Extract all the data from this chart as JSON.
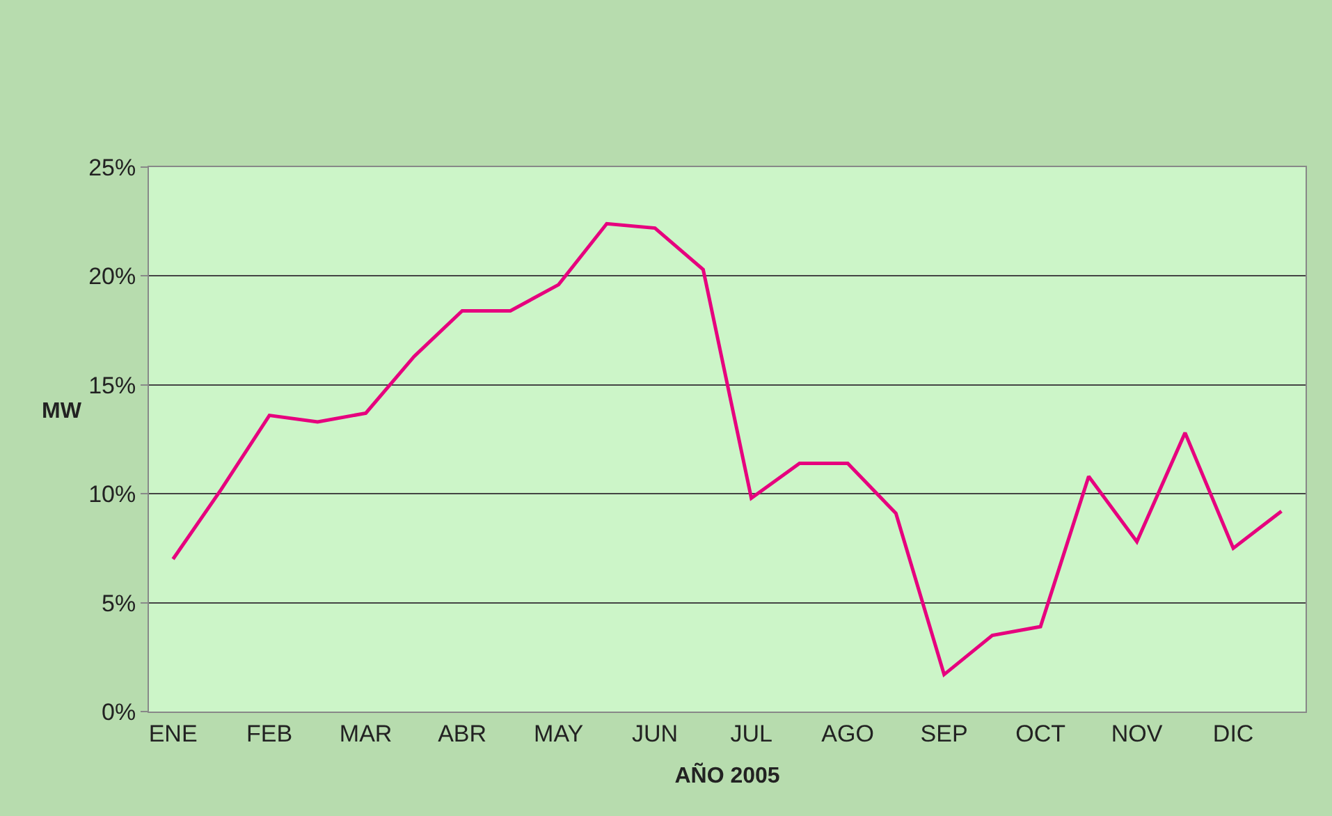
{
  "chart_data": {
    "type": "line",
    "xlabel": "AÑO 2005",
    "ylabel": "MW",
    "categories": [
      "ENE",
      null,
      "FEB",
      null,
      "MAR",
      null,
      "ABR",
      null,
      "MAY",
      null,
      "JUN",
      null,
      "JUL",
      null,
      "AGO",
      null,
      "SEP",
      null,
      "OCT",
      null,
      "NOV",
      null,
      "DIC",
      null
    ],
    "series": [
      {
        "color": "#e6007e",
        "values": [
          7.0,
          10.2,
          13.6,
          13.3,
          13.7,
          16.3,
          18.4,
          18.4,
          19.6,
          22.4,
          22.2,
          20.3,
          9.8,
          11.4,
          11.4,
          9.1,
          1.7,
          3.5,
          3.9,
          10.8,
          7.8,
          12.8,
          7.5,
          9.2
        ]
      }
    ],
    "ylim": [
      0,
      25
    ],
    "yticks": [
      {
        "value": 0,
        "label": "0%"
      },
      {
        "value": 5,
        "label": "5%"
      },
      {
        "value": 10,
        "label": "10%"
      },
      {
        "value": 15,
        "label": "15%"
      },
      {
        "value": 20,
        "label": "20%"
      },
      {
        "value": 25,
        "label": "25%"
      }
    ],
    "grid": "y",
    "marker": "none",
    "line_style": "solid"
  }
}
